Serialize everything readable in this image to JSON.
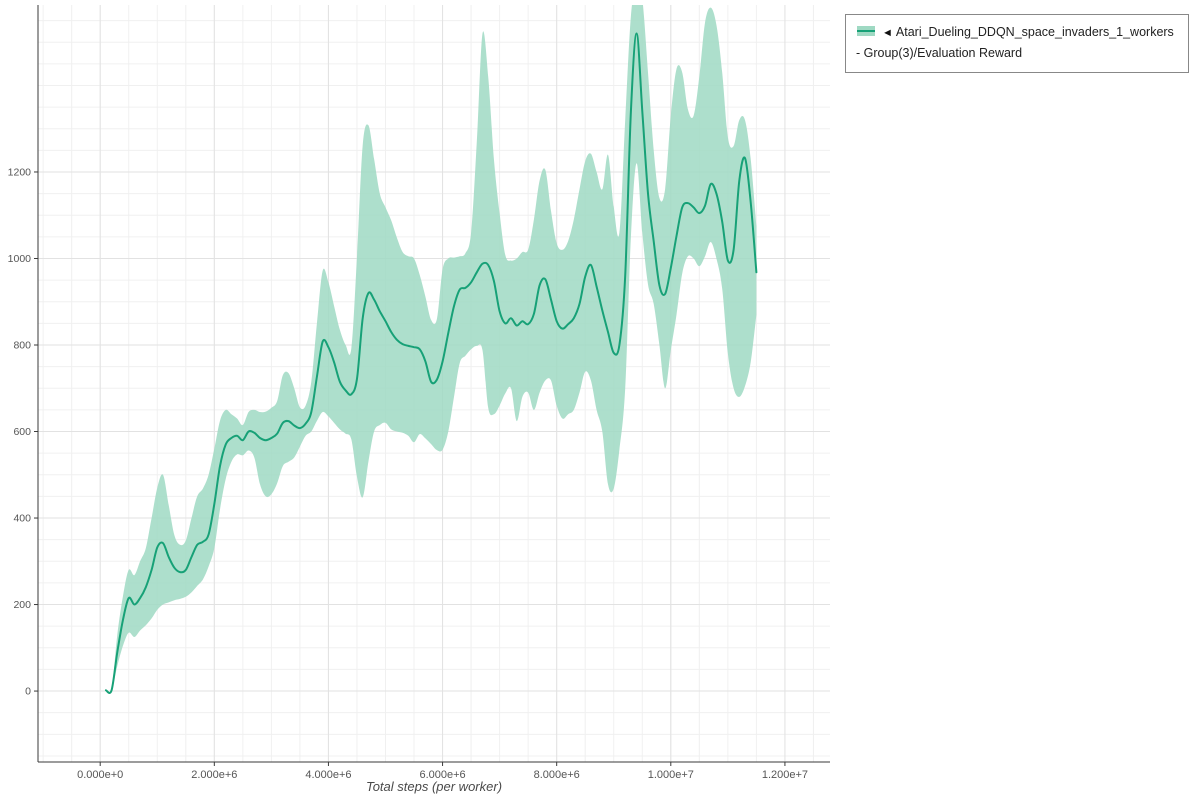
{
  "chart_data": {
    "type": "line",
    "title": "",
    "xlabel": "Total steps (per worker)",
    "ylabel": "",
    "grid": true,
    "legend_position": "top-right",
    "xlim": [
      -1090000,
      12790000
    ],
    "ylim": [
      -164,
      1586
    ],
    "x_ticks": [
      {
        "value": 0,
        "label": "0.000e+0"
      },
      {
        "value": 2000000,
        "label": "2.000e+6"
      },
      {
        "value": 4000000,
        "label": "4.000e+6"
      },
      {
        "value": 6000000,
        "label": "6.000e+6"
      },
      {
        "value": 8000000,
        "label": "8.000e+6"
      },
      {
        "value": 10000000,
        "label": "1.000e+7"
      },
      {
        "value": 12000000,
        "label": "1.200e+7"
      }
    ],
    "y_ticks": [
      {
        "value": 0,
        "label": "0"
      },
      {
        "value": 200,
        "label": "200"
      },
      {
        "value": 400,
        "label": "400"
      },
      {
        "value": 600,
        "label": "600"
      },
      {
        "value": 800,
        "label": "800"
      },
      {
        "value": 1000,
        "label": "1000"
      },
      {
        "value": 1200,
        "label": "1200"
      }
    ],
    "series": [
      {
        "name": "Atari_Dueling_DDQN_space_invaders_1_workers - Group(3)/Evaluation Reward",
        "color": "#17a177",
        "band_color": "#9fd9c3",
        "x": [
          100000,
          200000,
          300000,
          400000,
          500000,
          600000,
          700000,
          800000,
          900000,
          1000000,
          1100000,
          1200000,
          1300000,
          1400000,
          1500000,
          1600000,
          1700000,
          1800000,
          1900000,
          2000000,
          2100000,
          2200000,
          2300000,
          2400000,
          2500000,
          2600000,
          2700000,
          2800000,
          2900000,
          3000000,
          3100000,
          3200000,
          3300000,
          3400000,
          3500000,
          3600000,
          3700000,
          3800000,
          3900000,
          4000000,
          4100000,
          4200000,
          4300000,
          4400000,
          4500000,
          4600000,
          4700000,
          4800000,
          4900000,
          5000000,
          5100000,
          5200000,
          5300000,
          5400000,
          5500000,
          5600000,
          5700000,
          5800000,
          5900000,
          6000000,
          6100000,
          6200000,
          6300000,
          6400000,
          6500000,
          6600000,
          6700000,
          6800000,
          6900000,
          7000000,
          7100000,
          7200000,
          7300000,
          7400000,
          7500000,
          7600000,
          7700000,
          7800000,
          7900000,
          8000000,
          8100000,
          8200000,
          8300000,
          8400000,
          8500000,
          8600000,
          8700000,
          8800000,
          8900000,
          9000000,
          9100000,
          9200000,
          9300000,
          9400000,
          9500000,
          9600000,
          9700000,
          9800000,
          9900000,
          10000000,
          10100000,
          10200000,
          10300000,
          10400000,
          10500000,
          10600000,
          10700000,
          10800000,
          10900000,
          11000000,
          11100000,
          11200000,
          11300000,
          11400000,
          11500000
        ],
        "mean": [
          2,
          2,
          90,
          165,
          215,
          200,
          215,
          240,
          280,
          332,
          342,
          310,
          285,
          275,
          280,
          310,
          338,
          345,
          362,
          432,
          520,
          570,
          585,
          590,
          580,
          600,
          597,
          585,
          580,
          585,
          595,
          620,
          624,
          614,
          608,
          618,
          645,
          728,
          808,
          795,
          760,
          715,
          695,
          686,
          722,
          862,
          920,
          905,
          878,
          855,
          830,
          812,
          802,
          798,
          795,
          790,
          762,
          715,
          720,
          762,
          828,
          890,
          928,
          932,
          945,
          968,
          988,
          985,
          948,
          878,
          850,
          862,
          845,
          855,
          848,
          872,
          938,
          952,
          905,
          855,
          838,
          848,
          862,
          895,
          958,
          985,
          935,
          880,
          830,
          782,
          800,
          960,
          1340,
          1520,
          1340,
          1150,
          1040,
          938,
          918,
          978,
          1052,
          1118,
          1128,
          1118,
          1105,
          1122,
          1172,
          1150,
          1085,
          995,
          1020,
          1180,
          1232,
          1130,
          968
        ],
        "lo": [
          2,
          2,
          58,
          105,
          135,
          125,
          140,
          152,
          168,
          188,
          200,
          205,
          210,
          213,
          218,
          228,
          243,
          258,
          288,
          330,
          420,
          490,
          530,
          547,
          545,
          556,
          540,
          478,
          450,
          455,
          480,
          520,
          530,
          540,
          565,
          590,
          600,
          625,
          645,
          635,
          620,
          605,
          595,
          582,
          495,
          448,
          530,
          600,
          615,
          620,
          605,
          600,
          597,
          590,
          575,
          594,
          584,
          571,
          557,
          558,
          600,
          680,
          758,
          775,
          790,
          798,
          788,
          655,
          640,
          660,
          688,
          700,
          624,
          680,
          690,
          650,
          690,
          718,
          718,
          660,
          630,
          640,
          650,
          690,
          738,
          718,
          650,
          600,
          478,
          468,
          558,
          700,
          1050,
          1220,
          1060,
          940,
          895,
          800,
          700,
          788,
          870,
          965,
          1005,
          1000,
          982,
          1005,
          1038,
          1000,
          930,
          780,
          700,
          680,
          705,
          760,
          870
        ],
        "hi": [
          2,
          4,
          130,
          220,
          280,
          268,
          300,
          330,
          400,
          470,
          500,
          430,
          360,
          338,
          348,
          400,
          450,
          468,
          500,
          560,
          625,
          650,
          640,
          630,
          615,
          645,
          650,
          645,
          646,
          655,
          670,
          730,
          735,
          700,
          656,
          660,
          715,
          852,
          972,
          945,
          890,
          835,
          800,
          792,
          1005,
          1262,
          1308,
          1230,
          1150,
          1118,
          1088,
          1048,
          1015,
          1005,
          1000,
          962,
          912,
          858,
          860,
          975,
          1000,
          1002,
          1005,
          1012,
          1060,
          1270,
          1520,
          1420,
          1230,
          1105,
          1008,
          995,
          1000,
          1015,
          1020,
          1090,
          1180,
          1205,
          1110,
          1035,
          1020,
          1040,
          1090,
          1160,
          1225,
          1242,
          1200,
          1160,
          1240,
          1120,
          1060,
          1320,
          1560,
          1640,
          1600,
          1430,
          1250,
          1140,
          1160,
          1330,
          1438,
          1430,
          1345,
          1330,
          1420,
          1545,
          1580,
          1540,
          1430,
          1280,
          1260,
          1320,
          1320,
          1230,
          1075
        ]
      }
    ]
  },
  "legend": {
    "marker": "◄",
    "label": "Atari_Dueling_DDQN_space_invaders_1_workers - Group(3)/Evaluation Reward"
  }
}
